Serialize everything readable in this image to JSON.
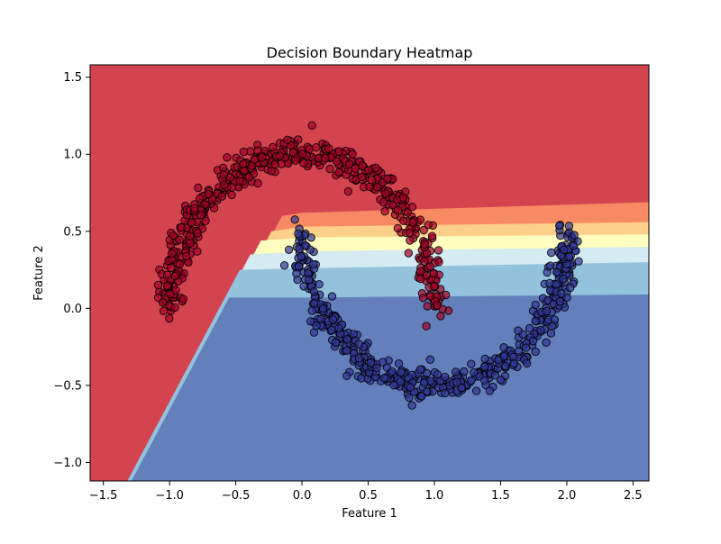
{
  "chart_data": {
    "type": "heatmap",
    "title": "Decision Boundary Heatmap",
    "xlabel": "Feature 1",
    "ylabel": "Feature 2",
    "xlim": [
      -1.6,
      2.62
    ],
    "ylim": [
      -1.12,
      1.58
    ],
    "xticks": [
      -1.5,
      -1.0,
      -0.5,
      0.0,
      0.5,
      1.0,
      1.5,
      2.0,
      2.5
    ],
    "xtick_labels": [
      "−1.5",
      "−1.0",
      "−0.5",
      "0.0",
      "0.5",
      "1.0",
      "1.5",
      "2.0",
      "2.5"
    ],
    "yticks": [
      -1.0,
      -0.5,
      0.0,
      0.5,
      1.0,
      1.5
    ],
    "ytick_labels": [
      "−1.0",
      "−0.5",
      "0.0",
      "0.5",
      "1.0",
      "1.5"
    ],
    "grid": false,
    "legend": "none",
    "colormap": "RdYlBu",
    "contour_colors": [
      "#d4444f",
      "#f88a63",
      "#fdd08a",
      "#fffebe",
      "#d3ebf1",
      "#93c2dc",
      "#6380bb"
    ],
    "contour_levels": [
      {
        "level": 0,
        "boundary_x": [
          -0.15,
          0.0,
          2.62
        ],
        "boundary_y": [
          0.6,
          0.62,
          0.69
        ]
      },
      {
        "level": 1,
        "boundary_x": [
          -0.15,
          0.02,
          2.62
        ],
        "boundary_y": [
          0.5,
          0.53,
          0.56
        ]
      },
      {
        "level": 2,
        "boundary_x": [
          -0.15,
          0.05,
          2.62
        ],
        "boundary_y": [
          0.44,
          0.46,
          0.48
        ]
      },
      {
        "level": 3,
        "boundary_x": [
          -0.15,
          0.05,
          2.62
        ],
        "boundary_y": [
          0.35,
          0.37,
          0.4
        ]
      },
      {
        "level": 4,
        "boundary_x": [
          -0.15,
          0.05,
          2.62
        ],
        "boundary_y": [
          0.25,
          0.26,
          0.3
        ]
      },
      {
        "level": 5,
        "boundary_x": [
          -0.15,
          0.05,
          2.62
        ],
        "boundary_y": [
          0.07,
          0.07,
          0.09
        ]
      }
    ],
    "series": [
      {
        "class": 0,
        "color": "#a50026",
        "shape": "upper moon",
        "center": [
          0.0,
          0.0
        ],
        "radius": 1.0,
        "angle_range_deg": [
          0,
          180
        ],
        "noise": 0.05,
        "n_points": 500
      },
      {
        "class": 1,
        "color": "#313695",
        "shape": "lower moon",
        "center": [
          1.0,
          0.5
        ],
        "radius": 1.0,
        "angle_range_deg": [
          180,
          360
        ],
        "noise": 0.05,
        "n_points": 500
      }
    ]
  }
}
